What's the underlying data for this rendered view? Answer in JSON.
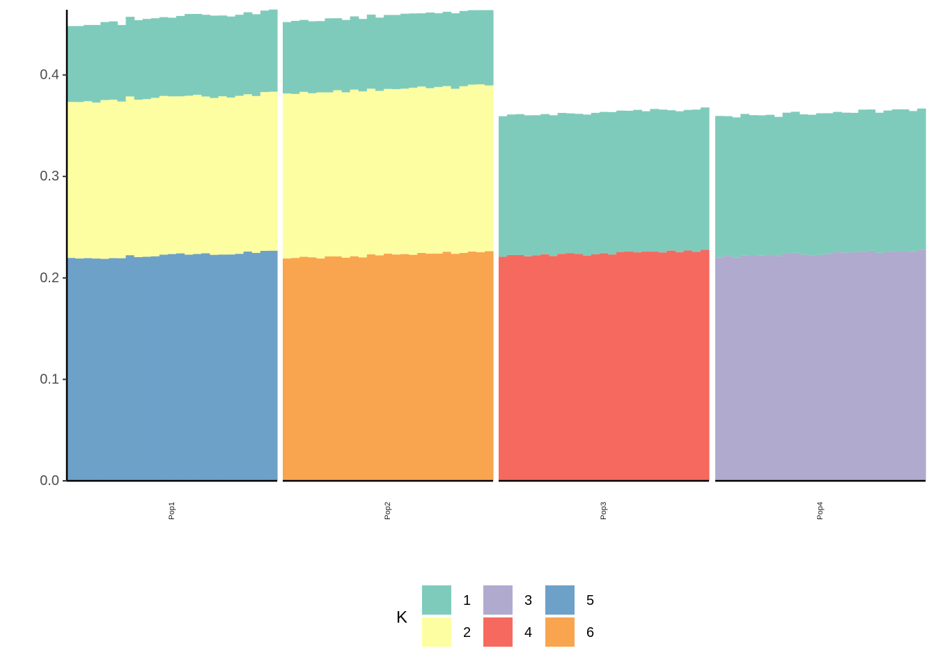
{
  "chart_data": {
    "type": "bar",
    "subtype": "stacked-admixture",
    "title": "",
    "xlabel": "",
    "ylabel": "",
    "ylim": [
      0,
      0.46
    ],
    "yticks": [
      "0.0",
      "0.1",
      "0.2",
      "0.3",
      "0.4"
    ],
    "legend": {
      "title": "K",
      "position": "bottom",
      "items": [
        {
          "key": "1",
          "color": "#7FCBBB"
        },
        {
          "key": "2",
          "color": "#FDFEA2"
        },
        {
          "key": "3",
          "color": "#B0AACF"
        },
        {
          "key": "4",
          "color": "#F6695F"
        },
        {
          "key": "5",
          "color": "#6DA1C8"
        },
        {
          "key": "6",
          "color": "#F9A550"
        }
      ]
    },
    "facets": [
      {
        "label": "Pop1",
        "n_individuals": 25,
        "layers": [
          {
            "k": "5",
            "start": 0.219,
            "end": 0.226
          },
          {
            "k": "2",
            "start": 0.155,
            "end": 0.156
          },
          {
            "k": "1",
            "start": 0.075,
            "end": 0.082
          }
        ]
      },
      {
        "label": "Pop2",
        "n_individuals": 25,
        "layers": [
          {
            "k": "6",
            "start": 0.219,
            "end": 0.226
          },
          {
            "k": "2",
            "start": 0.163,
            "end": 0.164
          },
          {
            "k": "1",
            "start": 0.071,
            "end": 0.074
          }
        ]
      },
      {
        "label": "Pop3",
        "n_individuals": 25,
        "layers": [
          {
            "k": "4",
            "start": 0.221,
            "end": 0.227
          },
          {
            "k": "1",
            "start": 0.139,
            "end": 0.14
          }
        ]
      },
      {
        "label": "Pop4",
        "n_individuals": 25,
        "layers": [
          {
            "k": "3",
            "start": 0.221,
            "end": 0.227
          },
          {
            "k": "1",
            "start": 0.138,
            "end": 0.139
          }
        ]
      }
    ]
  }
}
